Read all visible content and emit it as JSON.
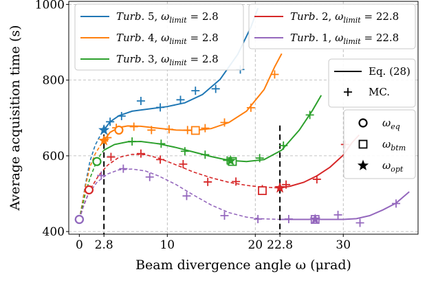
{
  "chart_data": {
    "type": "line",
    "xlabel": "Beam divergence angle ω (μrad)",
    "ylabel": "Average acquisition time (s)",
    "xlim": [
      -1.2,
      38.5
    ],
    "ylim": [
      393,
      1008
    ],
    "grid": true,
    "x_ticks": [
      {
        "value": 0,
        "label": "0"
      },
      {
        "value": 2.8,
        "label": "2.8"
      },
      {
        "value": 10,
        "label": "10"
      },
      {
        "value": 20,
        "label": "20"
      },
      {
        "value": 22.8,
        "label": "22.8"
      },
      {
        "value": 30,
        "label": "30"
      }
    ],
    "y_ticks": [
      {
        "value": 400,
        "label": "400"
      },
      {
        "value": 600,
        "label": "600"
      },
      {
        "value": 800,
        "label": "800"
      },
      {
        "value": 1000,
        "label": "1000"
      }
    ],
    "omega_limit_markers": [
      2.8,
      22.8
    ],
    "series": [
      {
        "name": "Turb. 5, ω_limit = 2.8",
        "name_parts": {
          "prefix": "Turb.",
          "num": "5",
          "sym": "ω",
          "sub": "limit",
          "val": "2.8"
        },
        "color": "#1f77b4",
        "omega_limit": 2.8,
        "dashed_x": [
          0,
          0.3,
          0.7,
          1.2,
          1.8,
          2.4,
          2.8
        ],
        "dashed_y": [
          432,
          470,
          525,
          585,
          628,
          655,
          668
        ],
        "solid_x": [
          2.8,
          3.5,
          4.5,
          6,
          8,
          10,
          12,
          14,
          16,
          18,
          19.5,
          20.3
        ],
        "solid_y": [
          668,
          690,
          706,
          718,
          724,
          730,
          740,
          762,
          802,
          868,
          940,
          990
        ],
        "mc_x": [
          3.5,
          4.8,
          7,
          9.2,
          11.5,
          13.2,
          15.5,
          18.3
        ],
        "mc_y": [
          690,
          705,
          745,
          728,
          748,
          772,
          777,
          828
        ],
        "eq": {
          "x": 0,
          "y": 432
        },
        "opt": {
          "x": 2.8,
          "y": 668
        }
      },
      {
        "name": "Turb. 4, ω_limit = 2.8",
        "name_parts": {
          "prefix": "Turb.",
          "num": "4",
          "sym": "ω",
          "sub": "limit",
          "val": "2.8"
        },
        "color": "#ff7f0e",
        "omega_limit": 2.8,
        "dashed_x": [
          0,
          0.3,
          0.7,
          1.2,
          1.8,
          2.4,
          2.8
        ],
        "dashed_y": [
          432,
          468,
          520,
          570,
          605,
          628,
          640
        ],
        "solid_x": [
          2.8,
          3.5,
          4.5,
          5.5,
          7,
          9,
          11,
          13,
          15,
          17,
          19,
          21,
          22.2,
          23
        ],
        "solid_y": [
          640,
          662,
          675,
          679,
          678,
          673,
          668,
          667,
          672,
          688,
          718,
          775,
          835,
          870
        ],
        "mc_x": [
          3.2,
          4.2,
          6.2,
          8.2,
          10.2,
          12.3,
          14.3,
          16.5,
          19.5,
          22.2
        ],
        "mc_y": [
          648,
          674,
          677,
          668,
          670,
          668,
          673,
          688,
          727,
          815
        ],
        "eq": {
          "x": 4.5,
          "y": 668
        },
        "btm": {
          "x": 13.2,
          "y": 667
        },
        "opt": {
          "x": 2.8,
          "y": 640
        }
      },
      {
        "name": "Turb. 3, ω_limit = 2.8",
        "name_parts": {
          "prefix": "Turb.",
          "num": "3",
          "sym": "ω",
          "sub": "limit",
          "val": "2.8"
        },
        "color": "#2ca02c",
        "omega_limit": 2.8,
        "dashed_x": [
          0,
          0.3,
          0.7,
          1.2,
          1.8,
          2.4,
          2.8
        ],
        "dashed_y": [
          432,
          462,
          502,
          540,
          576,
          603,
          615
        ],
        "solid_x": [
          2.8,
          4,
          5.5,
          7,
          9,
          11,
          13,
          15,
          17,
          19,
          21,
          23,
          25,
          26.5,
          27.5
        ],
        "solid_y": [
          615,
          630,
          637,
          638,
          632,
          622,
          610,
          598,
          588,
          585,
          590,
          615,
          668,
          720,
          760
        ],
        "mc_x": [
          6,
          9.3,
          12,
          14.3,
          16.8,
          20.5,
          23.2,
          26.2
        ],
        "mc_y": [
          638,
          632,
          612,
          603,
          588,
          594,
          627,
          708
        ],
        "eq": {
          "x": 2,
          "y": 585
        },
        "btm": {
          "x": 17.4,
          "y": 585
        },
        "opt": {
          "x": 17.2,
          "y": 587
        }
      },
      {
        "name": "Turb. 2, ω_limit = 22.8",
        "name_parts": {
          "prefix": "Turb.",
          "num": "2",
          "sym": "ω",
          "sub": "limit",
          "val": "22.8"
        },
        "color": "#d62728",
        "omega_limit": 22.8,
        "dashed_x": [
          0,
          0.5,
          1.2,
          2.2,
          3.2,
          4.5,
          6,
          7.5,
          9,
          11,
          13,
          15,
          17,
          19,
          20.5,
          22.8
        ],
        "dashed_y": [
          432,
          470,
          510,
          548,
          575,
          596,
          604,
          603,
          594,
          576,
          557,
          542,
          530,
          522,
          518,
          515
        ],
        "solid_x": [
          22.8,
          24,
          25.5,
          27,
          28.5,
          30,
          31,
          31.8
        ],
        "solid_y": [
          515,
          520,
          530,
          547,
          570,
          602,
          635,
          655
        ],
        "mc_x": [
          3.6,
          7,
          9.2,
          11.8,
          14.6,
          17.8,
          20.8,
          23.5,
          27,
          30.2
        ],
        "mc_y": [
          597,
          606,
          590,
          578,
          531,
          532,
          512,
          524,
          538,
          630
        ],
        "eq": {
          "x": 1.1,
          "y": 510
        },
        "btm": {
          "x": 20.8,
          "y": 508
        },
        "opt": {
          "x": 22.8,
          "y": 515
        }
      },
      {
        "name": "Turb. 1, ω_limit = 22.8",
        "name_parts": {
          "prefix": "Turb.",
          "num": "1",
          "sym": "ω",
          "sub": "limit",
          "val": "22.8"
        },
        "color": "#9467bd",
        "omega_limit": 22.8,
        "dashed_x": [
          0,
          0.4,
          1,
          2,
          3.2,
          4.5,
          6,
          7.5,
          9,
          11,
          13,
          15,
          17,
          19,
          20.5,
          22.8
        ],
        "dashed_y": [
          432,
          462,
          498,
          530,
          552,
          563,
          565,
          560,
          547,
          524,
          496,
          470,
          450,
          438,
          434,
          432
        ],
        "solid_x": [
          22.8,
          25,
          27.5,
          30,
          31.5,
          33,
          34.5,
          36,
          37.5
        ],
        "solid_y": [
          432,
          432,
          432,
          432,
          434,
          442,
          457,
          475,
          505
        ],
        "mc_x": [
          2.5,
          5,
          8,
          12.2,
          16.5,
          20.3,
          23.8,
          26.8,
          29.4,
          31.9,
          36
        ],
        "mc_y": [
          548,
          566,
          544,
          494,
          442,
          433,
          433,
          433,
          444,
          423,
          474
        ],
        "eq": {
          "x": 0,
          "y": 432
        },
        "btm": {
          "x": 26.8,
          "y": 432
        },
        "opt": {
          "x": 26.8,
          "y": 432
        }
      }
    ],
    "legend_right": {
      "eq28_label": "Eq. (28)",
      "mc_label": "MC."
    },
    "marker_legend": [
      {
        "marker": "circle",
        "sym": "ω",
        "sub": "eq"
      },
      {
        "marker": "square",
        "sym": "ω",
        "sub": "btm"
      },
      {
        "marker": "star",
        "sym": "ω",
        "sub": "opt"
      }
    ]
  }
}
